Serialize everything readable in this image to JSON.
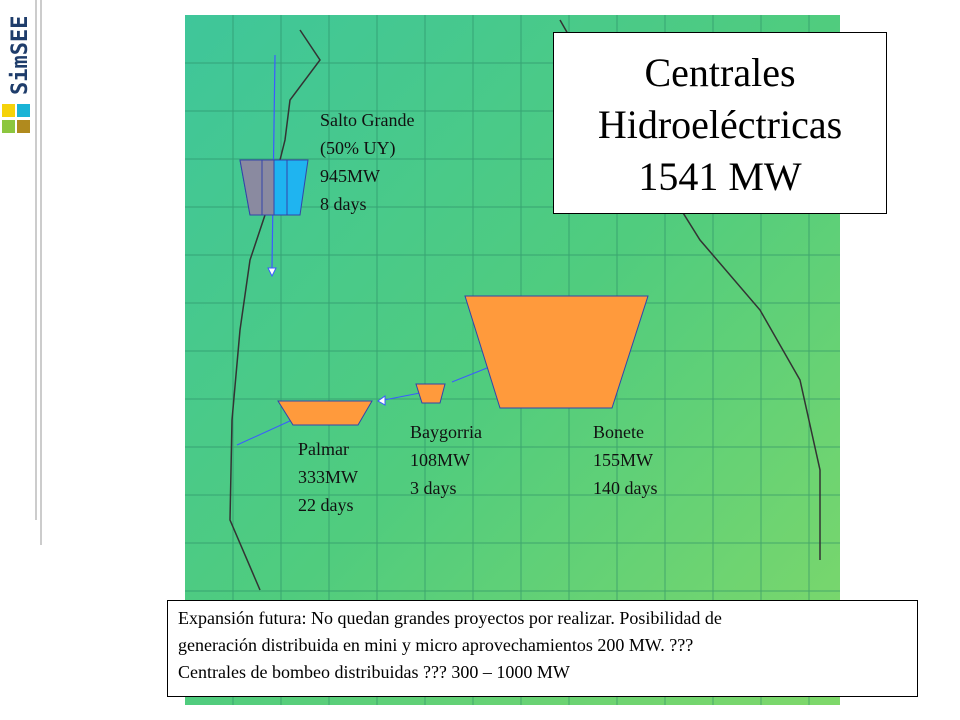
{
  "logo": "SimSEE",
  "title": {
    "lines": [
      "Centrales",
      "Hidroeléctricas",
      "1541 MW"
    ]
  },
  "plants": [
    {
      "lines": [
        "Salto Grande",
        "(50% UY)",
        "945MW",
        "8 days"
      ]
    },
    {
      "lines": [
        "Bonete",
        "155MW",
        "140 days"
      ]
    },
    {
      "lines": [
        "Baygorria",
        "108MW",
        "3 days"
      ]
    },
    {
      "lines": [
        "Palmar",
        "333MW",
        "22 days"
      ]
    }
  ],
  "note": {
    "lines": [
      "Expansión futura: No quedan grandes proyectos por realizar. Posibilidad de",
      "generación distribuida en mini y micro aprovechamientos 200 MW. ???",
      "Centrales de bombeo distribuidas ??? 300 – 1000 MW"
    ]
  }
}
